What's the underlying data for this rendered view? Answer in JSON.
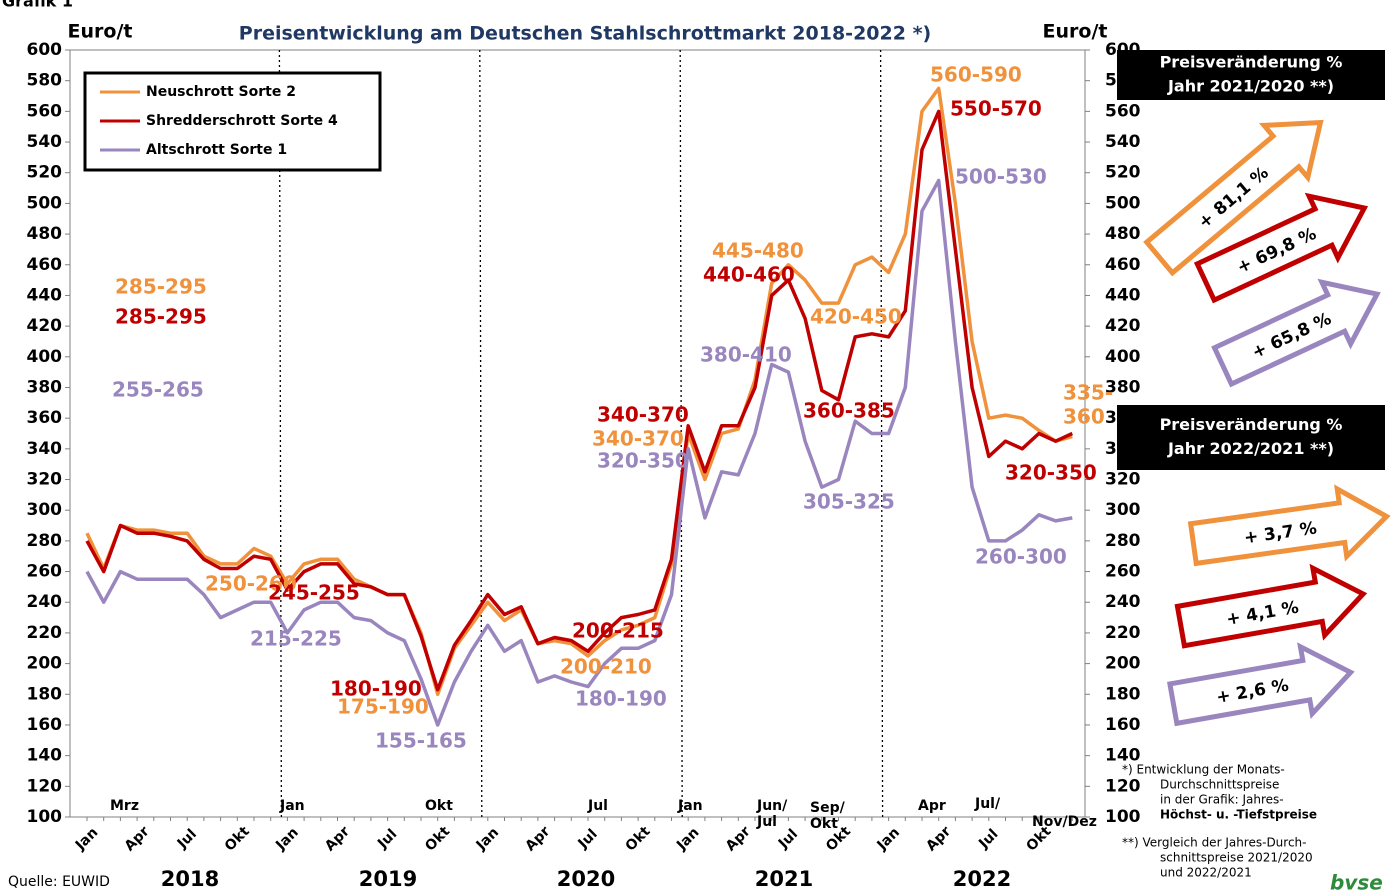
{
  "chart_data": {
    "type": "line",
    "heading": "Grafik 1",
    "title": "Preisentwicklung am Deutschen Stahlschrottmarkt 2018-2022 *)",
    "y_label": "Euro/t",
    "y2_label": "Euro/t",
    "categories": [
      "Jan",
      null,
      null,
      "Apr",
      null,
      null,
      "Jul",
      null,
      null,
      "Okt",
      null,
      null,
      "Jan",
      null,
      null,
      "Apr",
      null,
      null,
      "Jul",
      null,
      null,
      "Okt",
      null,
      null,
      "Jan",
      null,
      null,
      "Apr",
      null,
      null,
      "Jul",
      null,
      null,
      "Okt",
      null,
      null,
      "Jan",
      null,
      null,
      "Apr",
      null,
      null,
      "Jul",
      null,
      null,
      "Okt",
      null,
      null,
      "Jan",
      null,
      null,
      "Apr",
      null,
      null,
      "Jul",
      null,
      null,
      "Okt",
      null,
      null
    ],
    "year_labels": [
      "2018",
      "2019",
      "2020",
      "2021",
      "2022"
    ],
    "series": [
      {
        "name": "Neuschrott Sorte 2",
        "color": "#f0913c",
        "values": [
          285,
          262,
          290,
          287,
          287,
          285,
          285,
          270,
          265,
          265,
          275,
          270,
          252,
          265,
          268,
          268,
          255,
          250,
          245,
          245,
          220,
          180,
          210,
          225,
          240,
          228,
          235,
          213,
          215,
          213,
          205,
          215,
          222,
          225,
          230,
          265,
          350,
          320,
          350,
          353,
          385,
          448,
          460,
          450,
          435,
          435,
          460,
          465,
          455,
          480,
          560,
          575,
          500,
          410,
          360,
          362,
          360,
          352,
          345,
          348
        ]
      },
      {
        "name": "Shredderschrott Sorte 4",
        "color": "#c00000",
        "values": [
          280,
          260,
          290,
          285,
          285,
          283,
          280,
          268,
          262,
          262,
          270,
          268,
          248,
          260,
          265,
          265,
          252,
          250,
          245,
          245,
          218,
          183,
          212,
          228,
          245,
          232,
          237,
          213,
          217,
          215,
          208,
          220,
          230,
          232,
          235,
          268,
          355,
          325,
          355,
          355,
          380,
          440,
          450,
          425,
          378,
          372,
          413,
          415,
          413,
          430,
          535,
          560,
          470,
          380,
          335,
          345,
          340,
          350,
          345,
          350
        ]
      },
      {
        "name": "Altschrott Sorte 1",
        "color": "#9a86be",
        "values": [
          260,
          240,
          260,
          255,
          255,
          255,
          255,
          245,
          230,
          235,
          240,
          240,
          220,
          235,
          240,
          240,
          230,
          228,
          220,
          215,
          190,
          160,
          188,
          208,
          225,
          208,
          215,
          188,
          192,
          188,
          185,
          200,
          210,
          210,
          215,
          245,
          340,
          295,
          325,
          323,
          350,
          395,
          390,
          345,
          315,
          320,
          358,
          350,
          350,
          380,
          495,
          515,
          410,
          315,
          280,
          280,
          287,
          297,
          293,
          295
        ]
      }
    ],
    "ylim": [
      100,
      600
    ],
    "yticks": [
      100,
      120,
      140,
      160,
      180,
      200,
      220,
      240,
      260,
      280,
      300,
      320,
      340,
      360,
      380,
      400,
      420,
      440,
      460,
      480,
      500,
      520,
      540,
      560,
      580,
      600
    ],
    "y2lim": [
      100,
      600
    ],
    "y2ticks": [
      100,
      120,
      140,
      160,
      180,
      200,
      220,
      240,
      260,
      280,
      300,
      320,
      340,
      360,
      380,
      400,
      420,
      440,
      460,
      480,
      500,
      520,
      540,
      560,
      580,
      600
    ],
    "annotations": [
      {
        "text": "285-295",
        "color": "#f0913c"
      },
      {
        "text": "285-295",
        "color": "#c00000"
      },
      {
        "text": "255-265",
        "color": "#9a86be"
      },
      {
        "text": "250-260",
        "color": "#f0913c"
      },
      {
        "text": "245-255",
        "color": "#c00000"
      },
      {
        "text": "215-225",
        "color": "#9a86be"
      },
      {
        "text": "180-190",
        "color": "#c00000"
      },
      {
        "text": "175-190",
        "color": "#f0913c"
      },
      {
        "text": "155-165",
        "color": "#9a86be"
      },
      {
        "text": "200-215",
        "color": "#c00000"
      },
      {
        "text": "200-210",
        "color": "#f0913c"
      },
      {
        "text": "180-190",
        "color": "#9a86be"
      },
      {
        "text": "340-370",
        "color": "#c00000"
      },
      {
        "text": "340-370",
        "color": "#f0913c"
      },
      {
        "text": "320-350",
        "color": "#9a86be"
      },
      {
        "text": "445-480",
        "color": "#f0913c"
      },
      {
        "text": "440-460",
        "color": "#c00000"
      },
      {
        "text": "380-410",
        "color": "#9a86be"
      },
      {
        "text": "420-450",
        "color": "#f0913c"
      },
      {
        "text": "360-385",
        "color": "#c00000"
      },
      {
        "text": "305-325",
        "color": "#9a86be"
      },
      {
        "text": "560-590",
        "color": "#f0913c"
      },
      {
        "text": "550-570",
        "color": "#c00000"
      },
      {
        "text": "500-530",
        "color": "#9a86be"
      },
      {
        "text": "335-",
        "color": "#f0913c"
      },
      {
        "text": "360",
        "color": "#f0913c"
      },
      {
        "text": "320-350",
        "color": "#c00000"
      },
      {
        "text": "260-300",
        "color": "#9a86be"
      }
    ],
    "period_labels": [
      "Mrz",
      "Jan",
      "Okt",
      "Jul",
      "Jan",
      "Jun/",
      "Jul",
      "Sep/",
      "Okt",
      "Apr",
      "Jul/",
      "Nov/Dez"
    ],
    "source": "Quelle: EUWID",
    "logo": "bvse",
    "panels": [
      {
        "title": [
          "Preisveränderung %",
          "Jahr 2021/2020 **)"
        ],
        "changes": [
          {
            "text": "+ 81,1 %",
            "color": "#f0913c"
          },
          {
            "text": "+ 69,8 %",
            "color": "#c00000"
          },
          {
            "text": "+ 65,8 %",
            "color": "#9a86be"
          }
        ]
      },
      {
        "title": [
          "Preisveränderung %",
          "Jahr 2022/2021 **)"
        ],
        "changes": [
          {
            "text": "+ 3,7 %",
            "color": "#f0913c"
          },
          {
            "text": "+ 4,1 %",
            "color": "#c00000"
          },
          {
            "text": "+ 2,6 %",
            "color": "#9a86be"
          }
        ]
      }
    ],
    "footnotes": [
      [
        "*) Entwicklung der Monats-",
        "Durchschnittspreise",
        "in der Grafik: Jahres-",
        "Höchst- u. -Tiefstpreise"
      ],
      [
        "**) Vergleich der Jahres-Durch-",
        "schnittspreise 2021/2020",
        "und 2022/2021"
      ]
    ]
  }
}
